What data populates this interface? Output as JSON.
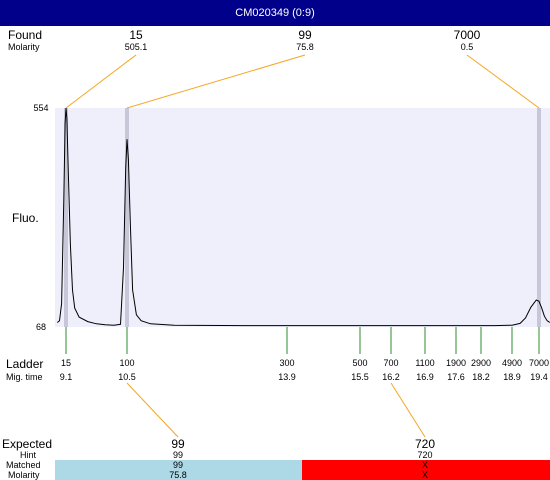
{
  "window": {
    "title": "CM020349 (0:9)"
  },
  "labels": {
    "found": "Found",
    "molarity": "Molarity",
    "fluo": "Fluo.",
    "ladder": "Ladder",
    "mig_time": "Mig. time",
    "expected": "Expected",
    "hint": "Hint",
    "matched": "Matched",
    "molarity2": "Molarity"
  },
  "colors": {
    "title_bg": "#00008b",
    "plot_bg": "#efeffb",
    "orange": "#f5a623",
    "green": "#2e8b2e",
    "match_bg": "#add8e6",
    "nomatch_bg": "#ff0000",
    "peak_marker": "#c7c7d9"
  },
  "chart_data": {
    "type": "line",
    "y_axis": {
      "min": 68,
      "max": 554,
      "label": "Fluo."
    },
    "found": [
      {
        "size": "15",
        "molarity": "505.1",
        "mig_time": 9.1
      },
      {
        "size": "99",
        "molarity": "75.8",
        "mig_time": 10.5
      },
      {
        "size": "7000",
        "molarity": "0.5",
        "mig_time": 19.4
      }
    ],
    "ladder": [
      {
        "size": "15",
        "mig_time": "9.1"
      },
      {
        "size": "100",
        "mig_time": "10.5"
      },
      {
        "size": "300",
        "mig_time": "13.9"
      },
      {
        "size": "500",
        "mig_time": "15.5"
      },
      {
        "size": "700",
        "mig_time": "16.2"
      },
      {
        "size": "1100",
        "mig_time": "16.9"
      },
      {
        "size": "1900",
        "mig_time": "17.6"
      },
      {
        "size": "2900",
        "mig_time": "18.2"
      },
      {
        "size": "4900",
        "mig_time": "18.9"
      },
      {
        "size": "7000",
        "mig_time": "19.4"
      }
    ],
    "expected": [
      {
        "size": "99",
        "hint": "99",
        "matched": "99",
        "molarity": "75.8",
        "ladder_index": 1,
        "ok": true
      },
      {
        "size": "720",
        "hint": "720",
        "matched": "X",
        "molarity": "X",
        "ladder_index": 4,
        "ok": false
      }
    ],
    "trace": [
      [
        8.9,
        78
      ],
      [
        8.95,
        82
      ],
      [
        9.0,
        120
      ],
      [
        9.05,
        350
      ],
      [
        9.08,
        520
      ],
      [
        9.1,
        554
      ],
      [
        9.12,
        530
      ],
      [
        9.15,
        420
      ],
      [
        9.2,
        250
      ],
      [
        9.25,
        150
      ],
      [
        9.3,
        110
      ],
      [
        9.4,
        90
      ],
      [
        9.6,
        80
      ],
      [
        9.8,
        75
      ],
      [
        10.0,
        73
      ],
      [
        10.2,
        72
      ],
      [
        10.35,
        74
      ],
      [
        10.42,
        200
      ],
      [
        10.47,
        420
      ],
      [
        10.5,
        485
      ],
      [
        10.53,
        440
      ],
      [
        10.57,
        300
      ],
      [
        10.62,
        150
      ],
      [
        10.7,
        95
      ],
      [
        10.8,
        82
      ],
      [
        11.0,
        75
      ],
      [
        11.5,
        72
      ],
      [
        13.0,
        71
      ],
      [
        15.0,
        71
      ],
      [
        17.0,
        71
      ],
      [
        18.5,
        71
      ],
      [
        18.9,
        72
      ],
      [
        19.05,
        76
      ],
      [
        19.15,
        88
      ],
      [
        19.25,
        112
      ],
      [
        19.35,
        128
      ],
      [
        19.4,
        125
      ],
      [
        19.45,
        110
      ],
      [
        19.5,
        92
      ],
      [
        19.55,
        82
      ],
      [
        19.6,
        78
      ]
    ]
  }
}
